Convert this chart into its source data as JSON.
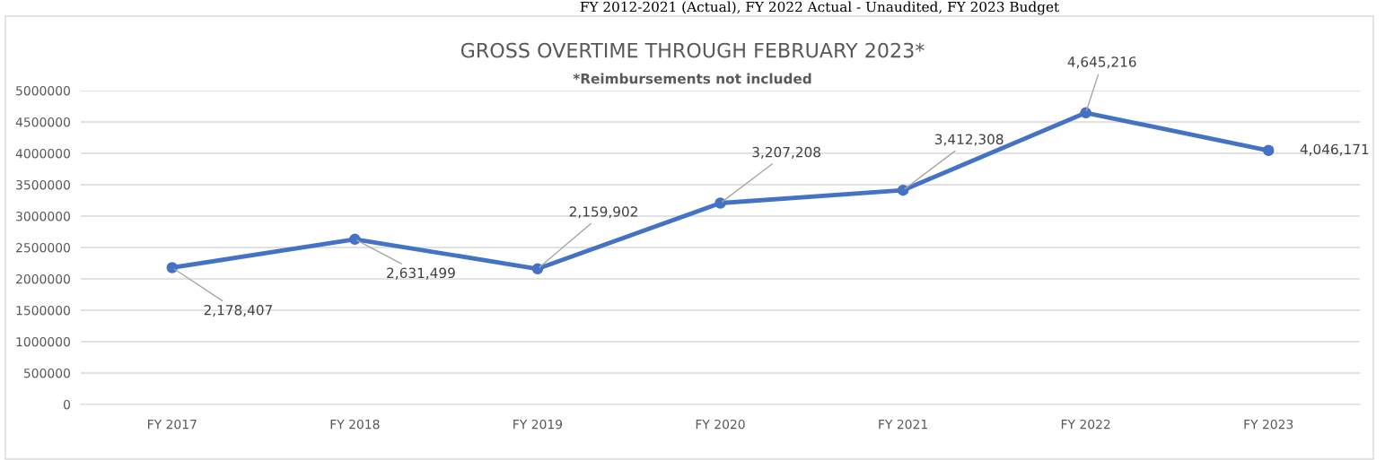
{
  "chart_data": {
    "type": "line",
    "title": "GROSS OVERTIME THROUGH FEBRUARY 2023*",
    "subtitle": "*Reimbursements not included",
    "annotations": [
      "FY 2012-2021 (Actual), FY 2022 Actual - Unaudited, FY 2023 Budget"
    ],
    "categories": [
      "FY 2017",
      "FY 2018",
      "FY 2019",
      "FY 2020",
      "FY 2021",
      "FY 2022",
      "FY 2023"
    ],
    "series": [
      {
        "color": "#4472c4",
        "values": [
          2178407,
          2631499,
          2159902,
          3207208,
          3412308,
          4645216,
          4046171
        ]
      }
    ],
    "value_labels": [
      "2,178,407",
      "2,631,499",
      "2,159,902",
      "3,207,208",
      "3,412,308",
      "4,645,216",
      "4,046,171"
    ],
    "ylim": [
      0,
      5000000
    ],
    "yticks": [
      0,
      500000,
      1000000,
      1500000,
      2000000,
      2500000,
      3000000,
      3500000,
      4000000,
      4500000,
      5000000
    ],
    "grid": "y",
    "marker": "circle",
    "line_style": "solid",
    "legend": false
  }
}
